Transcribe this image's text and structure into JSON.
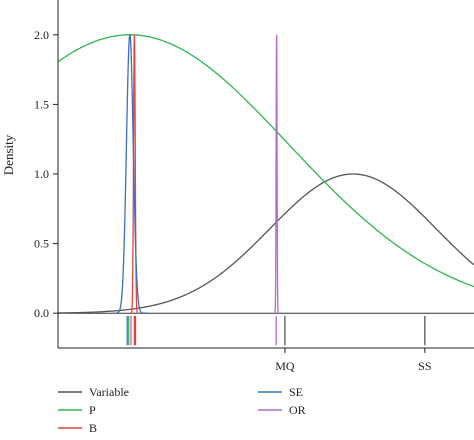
{
  "chart_data": {
    "type": "line",
    "ylabel": "Density",
    "ylim": [
      -0.25,
      2.25
    ],
    "yticks": [
      0.0,
      0.5,
      1.0,
      1.5,
      2.0
    ],
    "ytick_labels": [
      "0.0",
      "0.5",
      "1.0",
      "1.5",
      "2.0"
    ],
    "xlim": [
      -0.05,
      1.05
    ],
    "x_ticks": [
      {
        "x": 0.55,
        "label": "MQ"
      },
      {
        "x": 0.92,
        "label": "SS"
      }
    ],
    "legend_position": "bottom",
    "series": [
      {
        "name": "Variable",
        "color": "#555555",
        "kind": "gaussian",
        "mean": 0.73,
        "sd": 0.22,
        "peak": 1.0
      },
      {
        "name": "P",
        "color": "#2db84d",
        "kind": "gaussian",
        "mean": 0.14,
        "sd": 0.42,
        "peak": 2.0
      },
      {
        "name": "B",
        "color": "#e0443c",
        "kind": "gaussian",
        "mean": 0.152,
        "sd": 0.0022,
        "peak": 2.0
      },
      {
        "name": "SE",
        "color": "#3a6fc4",
        "kind": "gaussian",
        "mean": 0.14,
        "sd": 0.009,
        "peak": 2.0
      },
      {
        "name": "OR",
        "color": "#b36ad1",
        "kind": "gaussian",
        "mean": 0.528,
        "sd": 0.0012,
        "peak": 2.0
      }
    ],
    "rugs": [
      {
        "series": "SE",
        "x": [
          0.133
        ]
      },
      {
        "series": "P",
        "x": [
          0.137
        ]
      },
      {
        "series": "OR",
        "x": [
          0.143,
          0.527
        ]
      },
      {
        "series": "B",
        "x": [
          0.152,
          0.155
        ]
      },
      {
        "series": "Variable",
        "x": [
          0.55,
          0.92
        ]
      }
    ]
  }
}
